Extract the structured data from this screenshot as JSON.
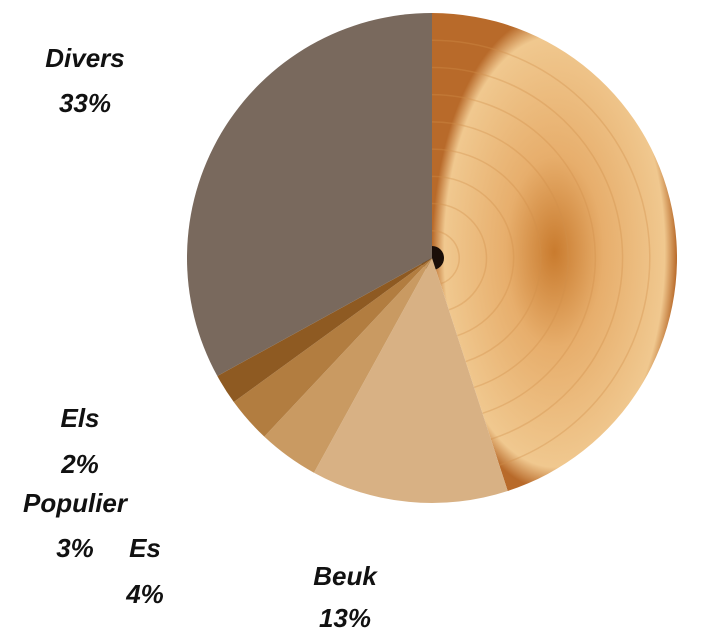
{
  "chart_data": {
    "type": "pie",
    "categories": [
      null,
      "Beuk",
      "Es",
      "Populier",
      "Els",
      "Divers"
    ],
    "values": [
      45,
      13,
      4,
      3,
      2,
      33
    ],
    "value_labels": [
      null,
      "13%",
      "4%",
      "3%",
      "2%",
      "33%"
    ],
    "colors": [
      "#e9b677",
      "#d8b184",
      "#c99a62",
      "#b27d40",
      "#8e5a22",
      "#79695d"
    ]
  }
}
